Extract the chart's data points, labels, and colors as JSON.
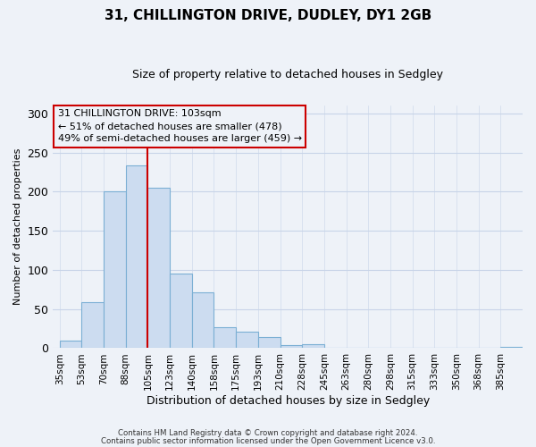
{
  "title": "31, CHILLINGTON DRIVE, DUDLEY, DY1 2GB",
  "subtitle": "Size of property relative to detached houses in Sedgley",
  "xlabel": "Distribution of detached houses by size in Sedgley",
  "ylabel": "Number of detached properties",
  "bar_labels": [
    "35sqm",
    "53sqm",
    "70sqm",
    "88sqm",
    "105sqm",
    "123sqm",
    "140sqm",
    "158sqm",
    "175sqm",
    "193sqm",
    "210sqm",
    "228sqm",
    "245sqm",
    "263sqm",
    "280sqm",
    "298sqm",
    "315sqm",
    "333sqm",
    "350sqm",
    "368sqm",
    "385sqm"
  ],
  "bar_heights": [
    10,
    59,
    200,
    234,
    205,
    95,
    71,
    27,
    21,
    14,
    4,
    5,
    0,
    0,
    0,
    0,
    1,
    0,
    0,
    0,
    2
  ],
  "bar_color": "#ccdcf0",
  "bar_edge_color": "#7bafd4",
  "vline_x": 4.0,
  "vline_color": "#cc0000",
  "ylim": [
    0,
    310
  ],
  "yticks": [
    0,
    50,
    100,
    150,
    200,
    250,
    300
  ],
  "annotation_title": "31 CHILLINGTON DRIVE: 103sqm",
  "annotation_line1": "← 51% of detached houses are smaller (478)",
  "annotation_line2": "49% of semi-detached houses are larger (459) →",
  "footnote1": "Contains HM Land Registry data © Crown copyright and database right 2024.",
  "footnote2": "Contains public sector information licensed under the Open Government Licence v3.0.",
  "background_color": "#eef2f8",
  "grid_color": "#c8d4e8",
  "title_fontsize": 11,
  "subtitle_fontsize": 9,
  "ylabel_fontsize": 8,
  "xlabel_fontsize": 9,
  "tick_fontsize": 7.5,
  "annot_fontsize": 8
}
